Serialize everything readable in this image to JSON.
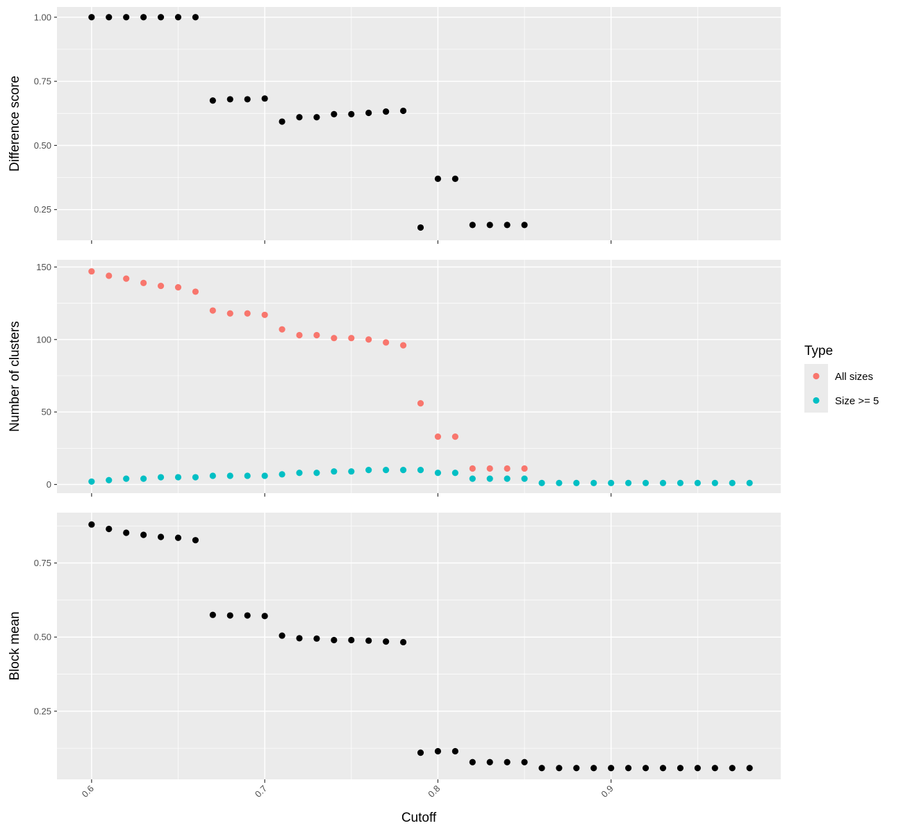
{
  "chart_data": {
    "type": "scatter",
    "xlabel": "Cutoff",
    "x_ticks": [
      "0.6",
      "0.7",
      "0.8",
      "0.9"
    ],
    "xlim": [
      0.58,
      0.998
    ],
    "grid": true,
    "legend": {
      "title": "Type",
      "placement": "right",
      "entries": [
        {
          "label": "All sizes",
          "color": "#F8766D"
        },
        {
          "label": "Size >= 5",
          "color": "#00BFC4"
        }
      ]
    },
    "panels": [
      {
        "ylabel": "Difference score",
        "ylim": [
          0.13,
          1.04
        ],
        "y_ticks": [
          "0.25",
          "0.50",
          "0.75",
          "1.00"
        ],
        "series": [
          {
            "color": "#000000",
            "points": [
              [
                0.6,
                1.0
              ],
              [
                0.61,
                1.0
              ],
              [
                0.62,
                1.0
              ],
              [
                0.63,
                1.0
              ],
              [
                0.64,
                1.0
              ],
              [
                0.65,
                1.0
              ],
              [
                0.66,
                1.0
              ],
              [
                0.67,
                0.675
              ],
              [
                0.68,
                0.68
              ],
              [
                0.69,
                0.68
              ],
              [
                0.7,
                0.683
              ],
              [
                0.71,
                0.593
              ],
              [
                0.72,
                0.61
              ],
              [
                0.73,
                0.61
              ],
              [
                0.74,
                0.622
              ],
              [
                0.75,
                0.622
              ],
              [
                0.76,
                0.627
              ],
              [
                0.77,
                0.632
              ],
              [
                0.78,
                0.635
              ],
              [
                0.79,
                0.18
              ],
              [
                0.8,
                0.37
              ],
              [
                0.81,
                0.37
              ],
              [
                0.82,
                0.19
              ],
              [
                0.83,
                0.19
              ],
              [
                0.84,
                0.19
              ],
              [
                0.85,
                0.19
              ]
            ]
          }
        ]
      },
      {
        "ylabel": "Number of clusters",
        "ylim": [
          -6,
          155
        ],
        "y_ticks": [
          "0",
          "50",
          "100",
          "150"
        ],
        "series": [
          {
            "name": "All sizes",
            "color": "#F8766D",
            "points": [
              [
                0.6,
                147
              ],
              [
                0.61,
                144
              ],
              [
                0.62,
                142
              ],
              [
                0.63,
                139
              ],
              [
                0.64,
                137
              ],
              [
                0.65,
                136
              ],
              [
                0.66,
                133
              ],
              [
                0.67,
                120
              ],
              [
                0.68,
                118
              ],
              [
                0.69,
                118
              ],
              [
                0.7,
                117
              ],
              [
                0.71,
                107
              ],
              [
                0.72,
                103
              ],
              [
                0.73,
                103
              ],
              [
                0.74,
                101
              ],
              [
                0.75,
                101
              ],
              [
                0.76,
                100
              ],
              [
                0.77,
                98
              ],
              [
                0.78,
                96
              ],
              [
                0.79,
                56
              ],
              [
                0.8,
                33
              ],
              [
                0.81,
                33
              ],
              [
                0.82,
                11
              ],
              [
                0.83,
                11
              ],
              [
                0.84,
                11
              ],
              [
                0.85,
                11
              ]
            ]
          },
          {
            "name": "Size >= 5",
            "color": "#00BFC4",
            "points": [
              [
                0.6,
                2
              ],
              [
                0.61,
                3
              ],
              [
                0.62,
                4
              ],
              [
                0.63,
                4
              ],
              [
                0.64,
                5
              ],
              [
                0.65,
                5
              ],
              [
                0.66,
                5
              ],
              [
                0.67,
                6
              ],
              [
                0.68,
                6
              ],
              [
                0.69,
                6
              ],
              [
                0.7,
                6
              ],
              [
                0.71,
                7
              ],
              [
                0.72,
                8
              ],
              [
                0.73,
                8
              ],
              [
                0.74,
                9
              ],
              [
                0.75,
                9
              ],
              [
                0.76,
                10
              ],
              [
                0.77,
                10
              ],
              [
                0.78,
                10
              ],
              [
                0.79,
                10
              ],
              [
                0.8,
                8
              ],
              [
                0.81,
                8
              ],
              [
                0.82,
                4
              ],
              [
                0.83,
                4
              ],
              [
                0.84,
                4
              ],
              [
                0.85,
                4
              ],
              [
                0.86,
                1
              ],
              [
                0.87,
                1
              ],
              [
                0.88,
                1
              ],
              [
                0.89,
                1
              ],
              [
                0.9,
                1
              ],
              [
                0.91,
                1
              ],
              [
                0.92,
                1
              ],
              [
                0.93,
                1
              ],
              [
                0.94,
                1
              ],
              [
                0.95,
                1
              ],
              [
                0.96,
                1
              ],
              [
                0.97,
                1
              ],
              [
                0.98,
                1
              ]
            ]
          }
        ]
      },
      {
        "ylabel": "Block mean",
        "ylim": [
          0.02,
          0.92
        ],
        "y_ticks": [
          "0.25",
          "0.50",
          "0.75"
        ],
        "series": [
          {
            "color": "#000000",
            "points": [
              [
                0.6,
                0.88
              ],
              [
                0.61,
                0.865
              ],
              [
                0.62,
                0.852
              ],
              [
                0.63,
                0.845
              ],
              [
                0.64,
                0.838
              ],
              [
                0.65,
                0.835
              ],
              [
                0.66,
                0.827
              ],
              [
                0.67,
                0.575
              ],
              [
                0.68,
                0.573
              ],
              [
                0.69,
                0.573
              ],
              [
                0.7,
                0.571
              ],
              [
                0.71,
                0.505
              ],
              [
                0.72,
                0.496
              ],
              [
                0.73,
                0.495
              ],
              [
                0.74,
                0.49
              ],
              [
                0.75,
                0.49
              ],
              [
                0.76,
                0.488
              ],
              [
                0.77,
                0.485
              ],
              [
                0.78,
                0.483
              ],
              [
                0.79,
                0.11
              ],
              [
                0.8,
                0.115
              ],
              [
                0.81,
                0.115
              ],
              [
                0.82,
                0.078
              ],
              [
                0.83,
                0.078
              ],
              [
                0.84,
                0.078
              ],
              [
                0.85,
                0.078
              ],
              [
                0.86,
                0.058
              ],
              [
                0.87,
                0.058
              ],
              [
                0.88,
                0.058
              ],
              [
                0.89,
                0.058
              ],
              [
                0.9,
                0.058
              ],
              [
                0.91,
                0.058
              ],
              [
                0.92,
                0.058
              ],
              [
                0.93,
                0.058
              ],
              [
                0.94,
                0.058
              ],
              [
                0.95,
                0.058
              ],
              [
                0.96,
                0.058
              ],
              [
                0.97,
                0.058
              ],
              [
                0.98,
                0.058
              ]
            ]
          }
        ]
      }
    ]
  }
}
